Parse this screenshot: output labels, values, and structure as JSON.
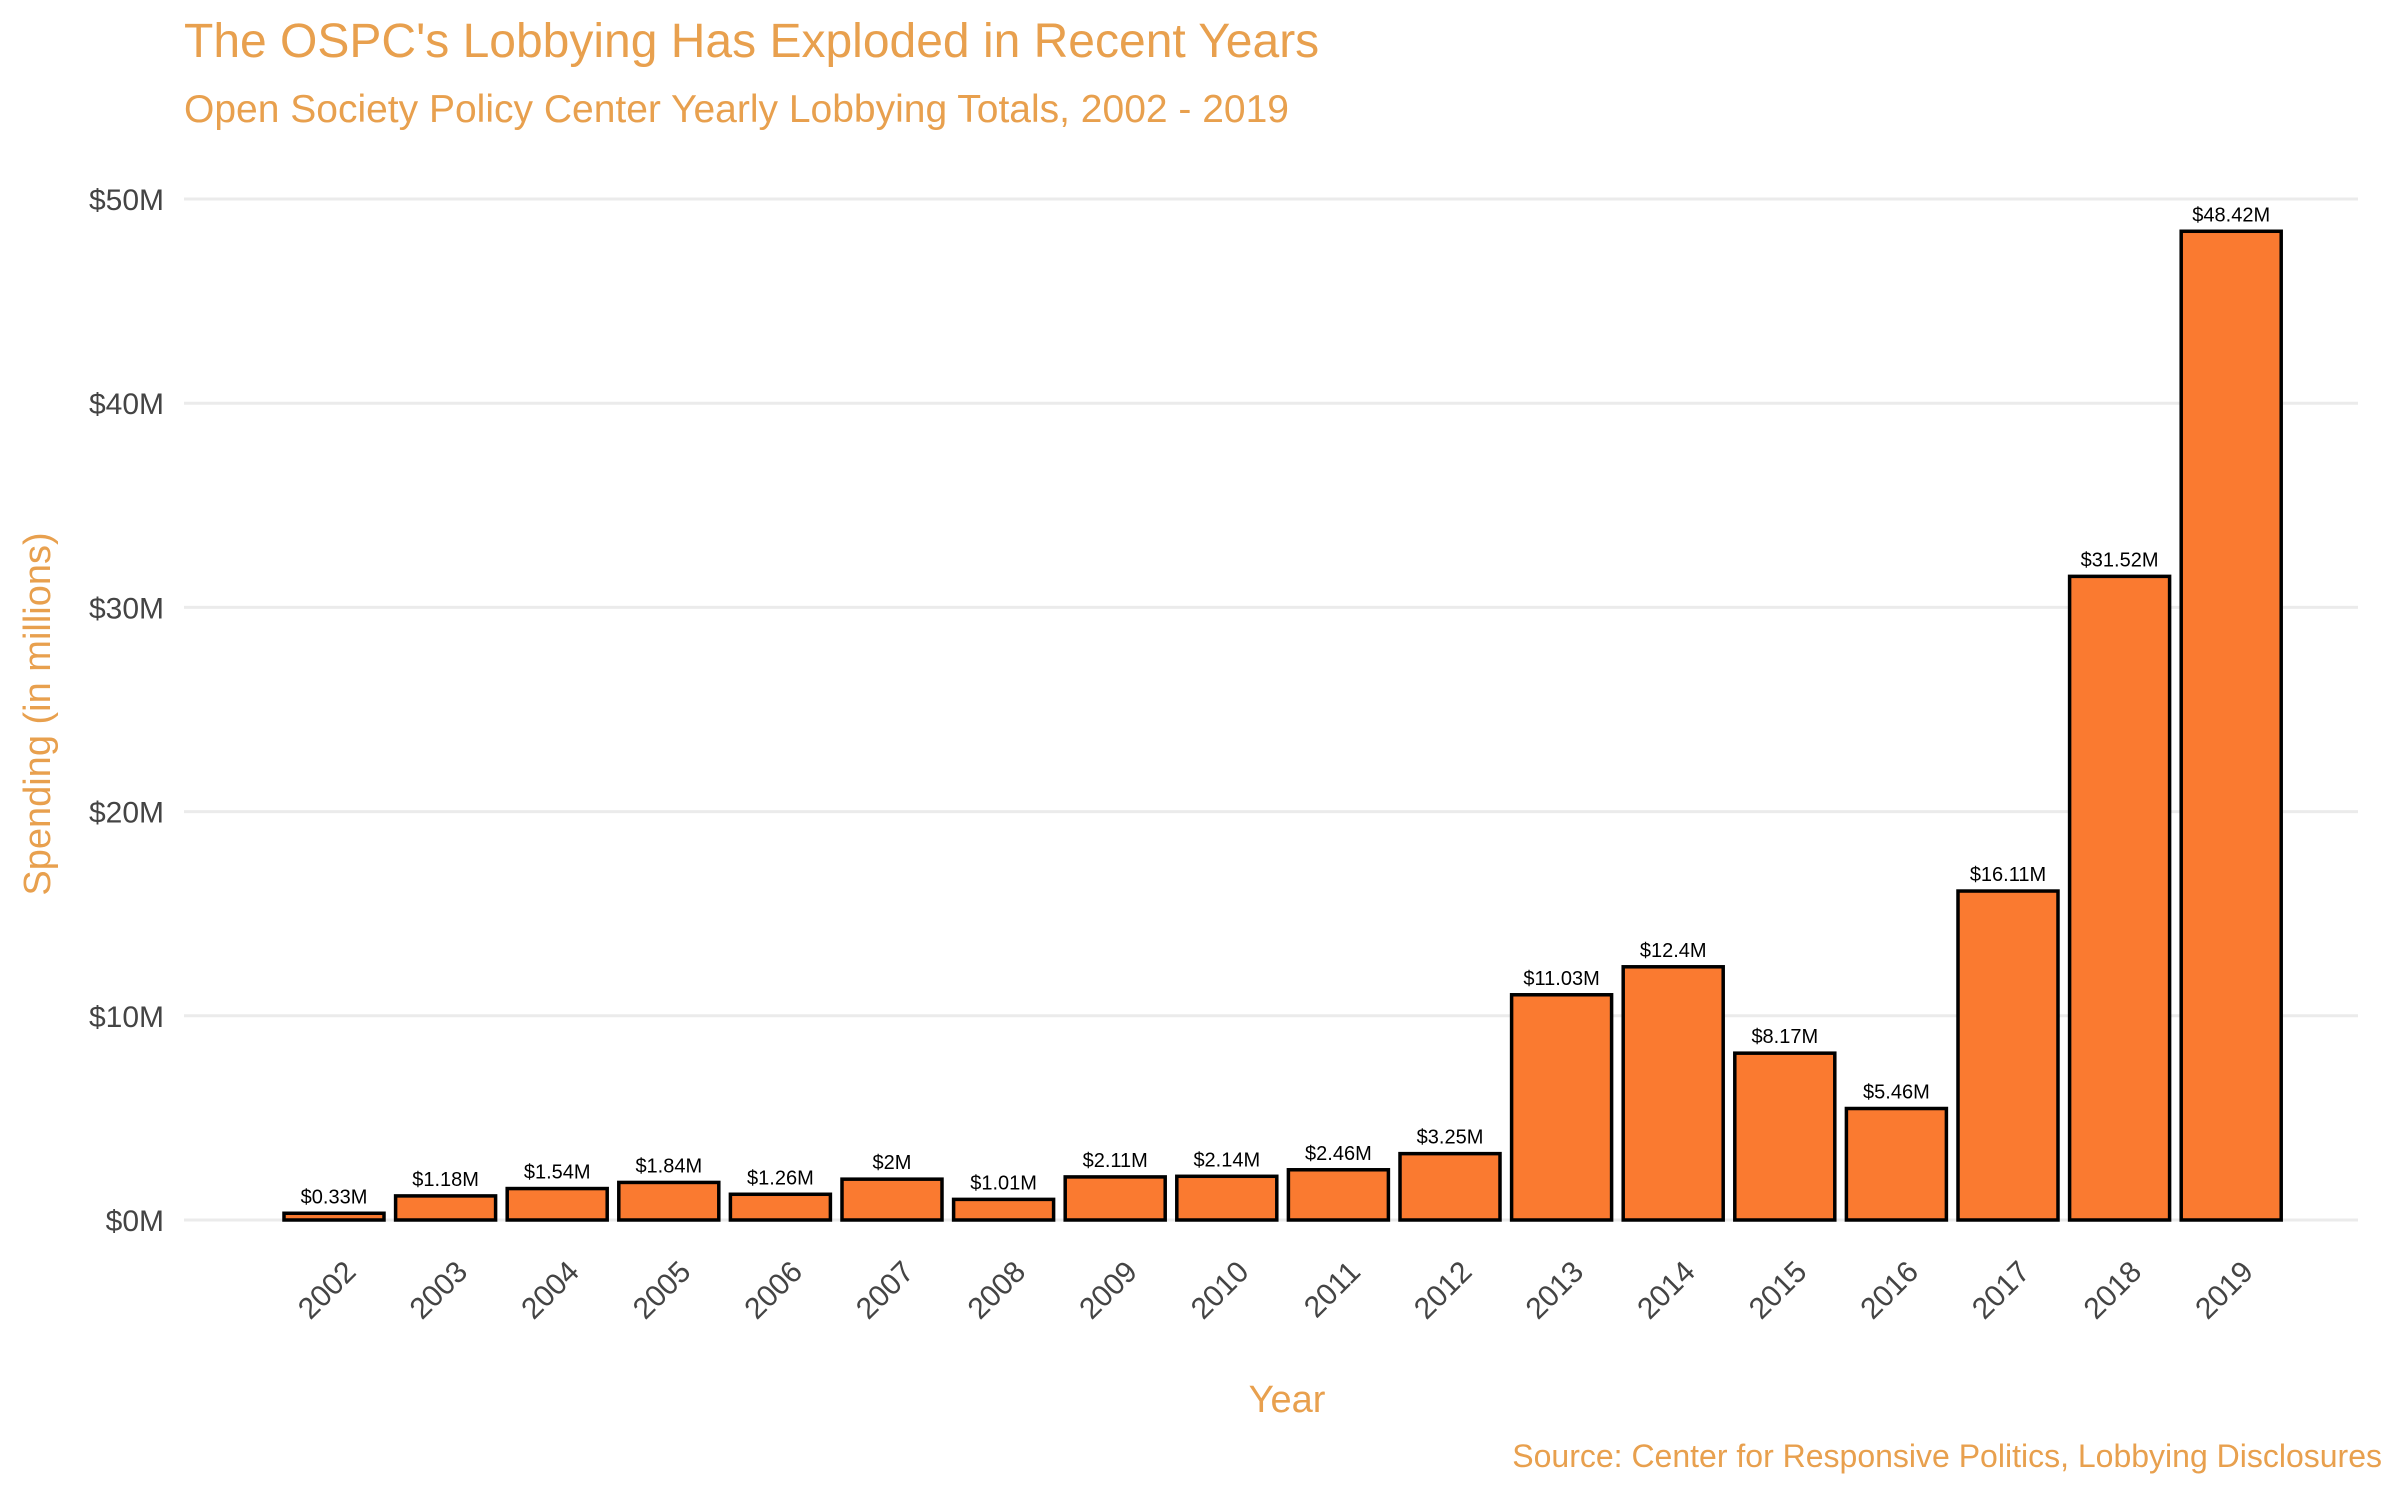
{
  "chart_data": {
    "type": "bar",
    "title": "The OSPC's Lobbying Has Exploded in Recent Years",
    "subtitle": "Open Society Policy Center Yearly Lobbying Totals, 2002 - 2019",
    "caption": "Source: Center for Responsive Politics, Lobbying Disclosures",
    "xlabel": "Year",
    "ylabel": "Spending (in millions)",
    "categories": [
      "2002",
      "2003",
      "2004",
      "2005",
      "2006",
      "2007",
      "2008",
      "2009",
      "2010",
      "2011",
      "2012",
      "2013",
      "2014",
      "2015",
      "2016",
      "2017",
      "2018",
      "2019"
    ],
    "values": [
      0.33,
      1.18,
      1.54,
      1.84,
      1.26,
      2,
      1.01,
      2.11,
      2.14,
      2.46,
      3.25,
      11.03,
      12.4,
      8.17,
      5.46,
      16.11,
      31.52,
      48.42
    ],
    "value_labels": [
      "$0.33M",
      "$1.18M",
      "$1.54M",
      "$1.84M",
      "$1.26M",
      "$2M",
      "$1.01M",
      "$2.11M",
      "$2.14M",
      "$2.46M",
      "$3.25M",
      "$11.03M",
      "$12.4M",
      "$8.17M",
      "$5.46M",
      "$16.11M",
      "$31.52M",
      "$48.42M"
    ],
    "yticks": [
      0,
      10,
      20,
      30,
      40,
      50
    ],
    "ytick_labels": [
      "$0M",
      "$10M",
      "$20M",
      "$30M",
      "$40M",
      "$50M"
    ],
    "ylim": [
      0,
      50
    ],
    "grid": "horizontal",
    "legend": "none",
    "bar_color": "#FA7A30",
    "bar_outline_color": "#000000",
    "text_accent_color": "#E8A04E"
  }
}
